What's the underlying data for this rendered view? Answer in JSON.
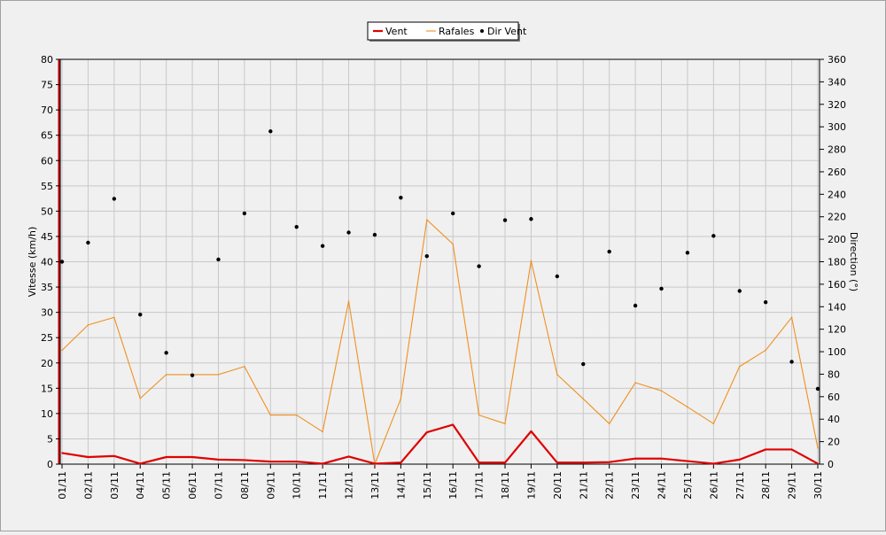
{
  "chart_data": {
    "type": "line",
    "title": "",
    "legend_position": "top-center",
    "grid": true,
    "background_color": "#f0f0f0",
    "plot_background": "#f0f0f0",
    "grid_color": "#c8c8c8",
    "categories": [
      "01/11",
      "02/11",
      "03/11",
      "04/11",
      "05/11",
      "06/11",
      "07/11",
      "08/11",
      "09/11",
      "10/11",
      "11/11",
      "12/11",
      "13/11",
      "14/11",
      "15/11",
      "16/11",
      "17/11",
      "18/11",
      "19/11",
      "20/11",
      "21/11",
      "22/11",
      "23/11",
      "24/11",
      "25/11",
      "26/11",
      "27/11",
      "28/11",
      "29/11",
      "30/11"
    ],
    "y_left": {
      "label": "Vitesse (km/h)",
      "range": [
        0,
        80
      ],
      "ticks": [
        "0",
        "5",
        "10",
        "15",
        "20",
        "25",
        "30",
        "35",
        "40",
        "45",
        "50",
        "55",
        "60",
        "65",
        "70",
        "75",
        "80"
      ]
    },
    "y_right": {
      "label": "Direction (°)",
      "range": [
        0,
        360
      ],
      "ticks": [
        "0",
        "20",
        "40",
        "60",
        "80",
        "100",
        "120",
        "140",
        "160",
        "180",
        "200",
        "220",
        "240",
        "260",
        "280",
        "300",
        "320",
        "340",
        "360"
      ]
    },
    "series": [
      {
        "name": "Vent",
        "kind": "line",
        "axis": "left",
        "color": "#e00000",
        "values": [
          2.2,
          1.4,
          1.6,
          0.1,
          1.4,
          1.4,
          0.9,
          0.8,
          0.5,
          0.5,
          0.1,
          1.5,
          0.1,
          0.3,
          6.3,
          7.8,
          0.3,
          0.3,
          6.5,
          0.3,
          0.3,
          0.4,
          1.1,
          1.1,
          0.6,
          0.1,
          0.9,
          2.9,
          2.9,
          0.1
        ]
      },
      {
        "name": "Rafales",
        "kind": "line",
        "axis": "left",
        "color": "#f0901e",
        "values": [
          22.5,
          27.5,
          29,
          13,
          17.7,
          17.7,
          17.7,
          19.3,
          9.7,
          9.7,
          6.4,
          32.2,
          0,
          12.9,
          48.3,
          43.5,
          9.7,
          8,
          40.2,
          17.7,
          12.9,
          8,
          16.1,
          14.5,
          11.3,
          8,
          19.3,
          22.5,
          29,
          3.2
        ]
      },
      {
        "name": "Dir Vent",
        "kind": "scatter",
        "axis": "right",
        "color": "#000000",
        "values": [
          180,
          197,
          236,
          133,
          99,
          79,
          182,
          223,
          296,
          211,
          194,
          206,
          204,
          237,
          185,
          223,
          176,
          217,
          218,
          167,
          89,
          189,
          141,
          156,
          188,
          203,
          154,
          144,
          91,
          67
        ]
      }
    ]
  }
}
